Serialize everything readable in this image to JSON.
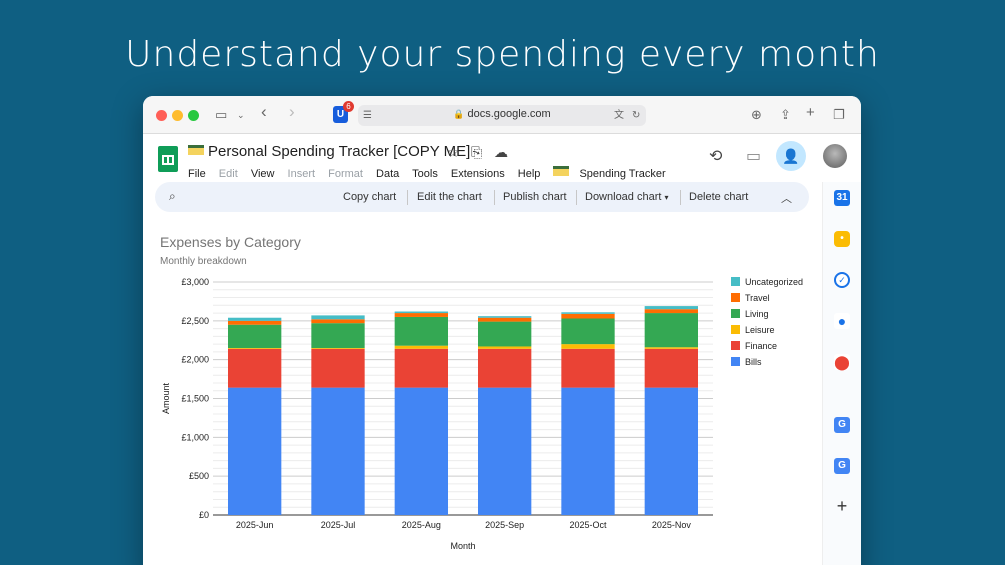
{
  "headline": "Understand your spending every month",
  "browser": {
    "url": "docs.google.com",
    "extension_badge": "6"
  },
  "doc": {
    "title": "Personal Spending Tracker [COPY ME]",
    "menu": [
      "File",
      "Edit",
      "View",
      "Insert",
      "Format",
      "Data",
      "Tools",
      "Extensions",
      "Help"
    ],
    "menu_disabled": [
      "Edit",
      "Insert",
      "Format"
    ],
    "custom_menu": "Spending Tracker"
  },
  "chart_toolbar": {
    "items": [
      "Copy chart",
      "Edit the chart",
      "Publish chart",
      "Download chart",
      "Delete chart"
    ]
  },
  "side_panel": {
    "icons": [
      "calendar-icon",
      "keep-icon",
      "tasks-icon",
      "contacts-icon",
      "maps-icon",
      "translate-icon",
      "translate-icon",
      "add-icon"
    ]
  },
  "colors": {
    "background": "#0f5f82",
    "Bills": "#4285f4",
    "Finance": "#ea4335",
    "Leisure": "#fbbc04",
    "Living": "#34a853",
    "Travel": "#ff6d01",
    "Uncategorized": "#46bdc6"
  },
  "chart_data": {
    "type": "bar",
    "stacked": true,
    "title": "Expenses by Category",
    "subtitle": "Monthly breakdown",
    "xlabel": "Month",
    "ylabel": "Amount",
    "ylim": [
      0,
      3000
    ],
    "yticks": [
      "£0",
      "£500",
      "£1,000",
      "£1,500",
      "£2,000",
      "£2,500",
      "£3,000"
    ],
    "legend_position": "right",
    "categories": [
      "2025-Jun",
      "2025-Jul",
      "2025-Aug",
      "2025-Sep",
      "2025-Oct",
      "2025-Nov"
    ],
    "series": [
      {
        "name": "Bills",
        "color": "#4285f4",
        "values": [
          1640,
          1640,
          1640,
          1640,
          1640,
          1640
        ]
      },
      {
        "name": "Finance",
        "color": "#ea4335",
        "values": [
          500,
          500,
          500,
          500,
          500,
          500
        ]
      },
      {
        "name": "Leisure",
        "color": "#fbbc04",
        "values": [
          10,
          10,
          40,
          30,
          60,
          20
        ]
      },
      {
        "name": "Living",
        "color": "#34a853",
        "values": [
          300,
          320,
          370,
          320,
          330,
          440
        ]
      },
      {
        "name": "Travel",
        "color": "#ff6d01",
        "values": [
          50,
          50,
          50,
          50,
          60,
          50
        ]
      },
      {
        "name": "Uncategorized",
        "color": "#46bdc6",
        "values": [
          40,
          50,
          20,
          20,
          20,
          40
        ]
      }
    ]
  }
}
